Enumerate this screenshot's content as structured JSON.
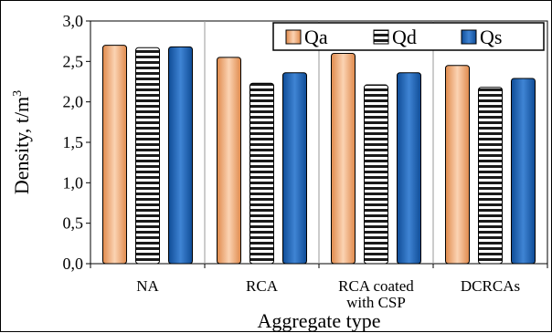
{
  "chart_data": {
    "type": "bar",
    "title": "",
    "xlabel": "Aggregate type",
    "ylabel": "Density, t/m",
    "ylabel_superscript": "3",
    "ylim": [
      0,
      3.0
    ],
    "y_ticks": [
      "0,0",
      "0,5",
      "1,0",
      "1,5",
      "2,0",
      "2,5",
      "3,0"
    ],
    "y_tick_values": [
      0,
      0.5,
      1.0,
      1.5,
      2.0,
      2.5,
      3.0
    ],
    "categories": [
      [
        "NA"
      ],
      [
        "RCA"
      ],
      [
        "RCA coated",
        "with CSP"
      ],
      [
        "DCRCAs"
      ]
    ],
    "series": [
      {
        "name": "Qa",
        "values": [
          2.7,
          2.55,
          2.6,
          2.45
        ],
        "color": "#f2a873"
      },
      {
        "name": "Qd",
        "values": [
          2.67,
          2.23,
          2.21,
          2.18
        ],
        "color": "#1a1a1a"
      },
      {
        "name": "Qs",
        "values": [
          2.68,
          2.36,
          2.36,
          2.29
        ],
        "color": "#1f5fae"
      }
    ],
    "grid": "vertical separators between categories",
    "legend_position": "top-right"
  }
}
